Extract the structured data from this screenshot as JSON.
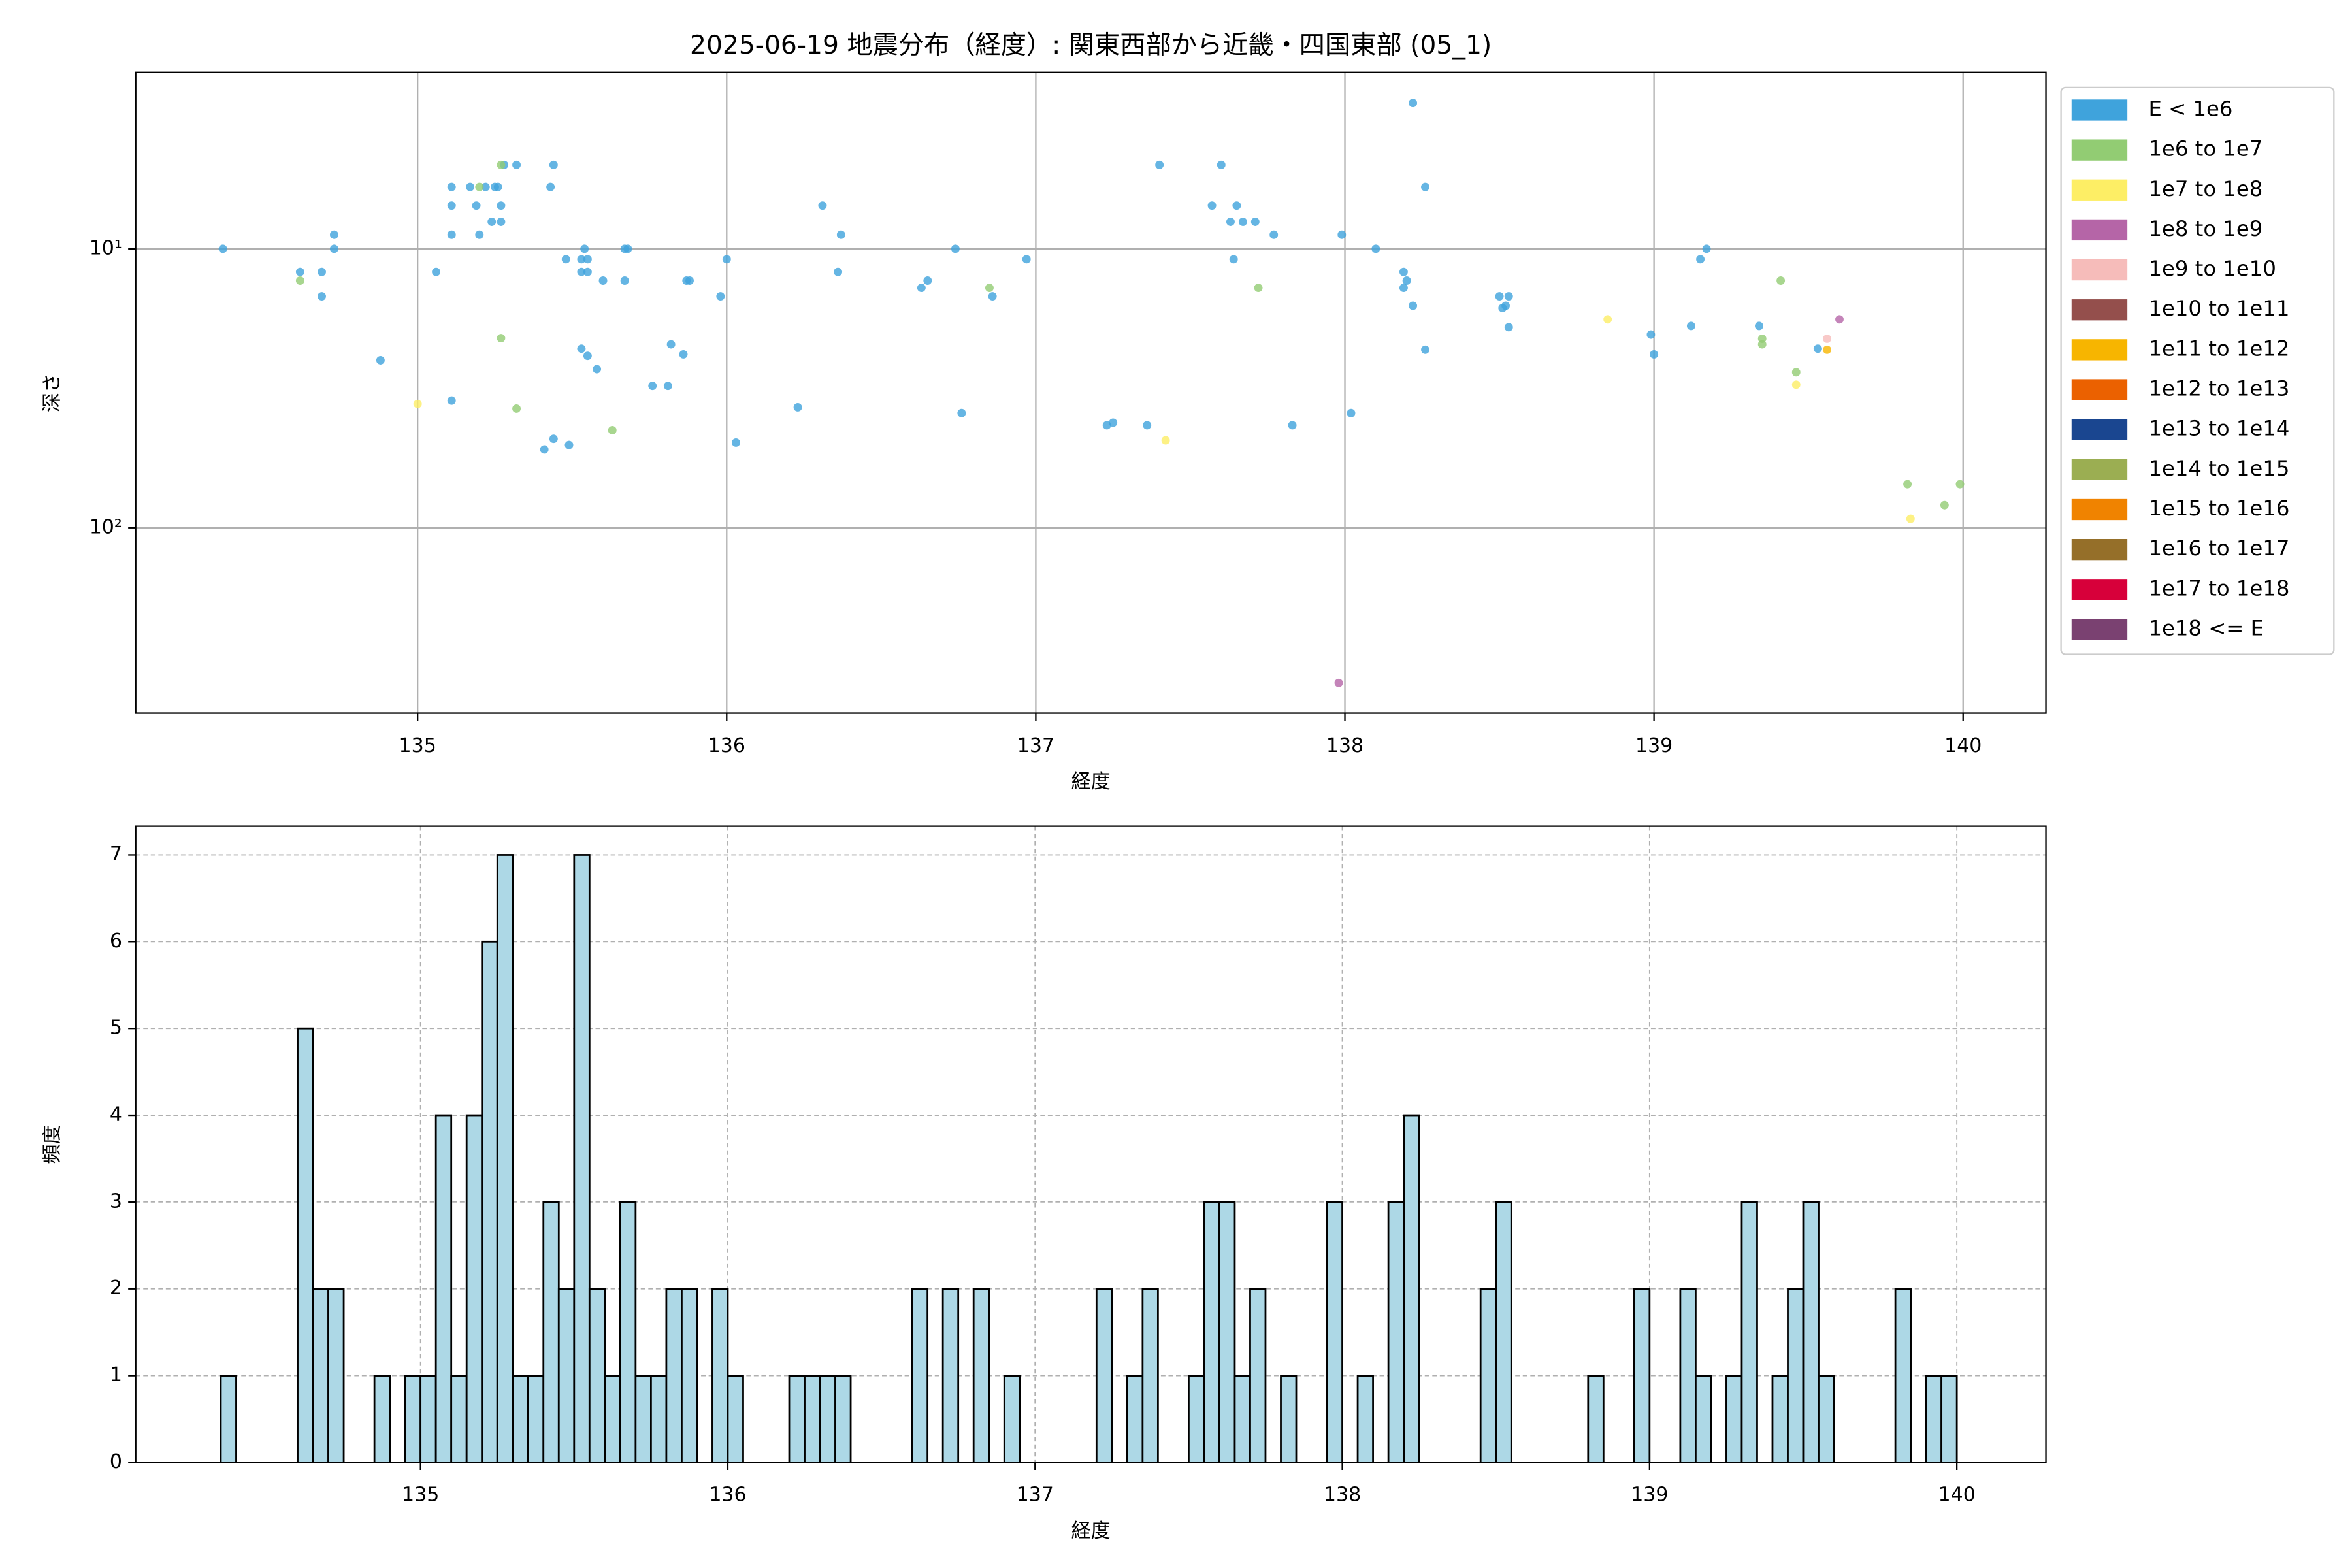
{
  "chart_data": [
    {
      "type": "scatter",
      "title": "2025-06-19 地震分布（経度）: 関東西部から近畿・四国東部 (05_1)",
      "xlabel": "経度",
      "ylabel": "深さ",
      "xlim": [
        134.088,
        140.268
      ],
      "xticks": [
        135,
        136,
        137,
        138,
        139,
        140
      ],
      "ylim": [
        2.33,
        462
      ],
      "yscale": "log",
      "y_inverted": true,
      "yticks": [
        {
          "value": 10,
          "label": "10¹"
        },
        {
          "value": 100,
          "label": "10²"
        }
      ],
      "grid": true,
      "legend": "outside upper right",
      "series": [
        {
          "name": "E < 1e6",
          "color": "#3fa3dc",
          "x": [
            134.37,
            134.62,
            134.69,
            134.69,
            134.73,
            134.73,
            134.88,
            135.11,
            135.11,
            135.11,
            135.06,
            135.11,
            135.17,
            135.19,
            135.2,
            135.22,
            135.25,
            135.26,
            135.24,
            135.27,
            135.27,
            135.28,
            135.32,
            135.44,
            135.43,
            135.48,
            135.54,
            135.53,
            135.55,
            135.53,
            135.55,
            135.6,
            135.67,
            135.68,
            135.67,
            135.53,
            135.55,
            135.58,
            135.82,
            135.86,
            135.76,
            135.81,
            135.87,
            135.88,
            135.44,
            135.41,
            135.49,
            135.98,
            136.0,
            136.03,
            136.23,
            136.31,
            136.37,
            136.36,
            136.63,
            136.65,
            136.74,
            136.86,
            136.97,
            136.76,
            137.23,
            137.25,
            137.36,
            137.4,
            137.57,
            137.6,
            137.63,
            137.65,
            137.67,
            137.71,
            137.64,
            137.77,
            137.83,
            137.99,
            138.02,
            138.1,
            138.22,
            138.26,
            138.19,
            138.2,
            138.19,
            138.22,
            138.26,
            138.5,
            138.52,
            138.51,
            138.53,
            138.53,
            138.99,
            139.0,
            139.12,
            139.15,
            139.17,
            139.34,
            139.53
          ],
          "values": [
            10,
            12.1,
            12.1,
            14.8,
            8.9,
            10,
            25.1,
            6,
            7,
            8.9,
            12.1,
            35,
            6,
            7,
            8.9,
            6,
            6,
            6,
            8,
            7,
            8,
            5,
            5,
            5,
            6,
            10.9,
            10,
            10.9,
            10.9,
            12.1,
            12.1,
            13,
            10,
            10,
            13,
            22.8,
            24.2,
            27,
            22,
            23.9,
            31,
            31,
            13,
            13,
            48,
            52.4,
            50.5,
            14.8,
            10.9,
            49.5,
            37,
            7,
            8.9,
            12.1,
            13.8,
            13,
            10,
            14.8,
            10.9,
            38.8,
            42.9,
            42,
            42.9,
            5,
            7,
            5,
            8,
            7,
            8,
            8,
            10.9,
            8.9,
            42.9,
            8.9,
            38.8,
            10,
            3,
            6,
            12.1,
            13,
            13.8,
            16,
            23,
            14.8,
            16,
            16.3,
            14.8,
            19.1,
            20.3,
            23.9,
            18.9,
            10.9,
            10,
            18.9,
            22.8
          ]
        },
        {
          "name": "1e6 to 1e7",
          "color": "#92cc73",
          "x": [
            134.62,
            135.27,
            135.2,
            135.27,
            135.32,
            135.63,
            136.85,
            137.72,
            139.35,
            139.35,
            139.46,
            139.41,
            139.82,
            139.94,
            139.99
          ],
          "values": [
            13,
            5,
            6,
            20.9,
            37.4,
            44.7,
            13.8,
            13.8,
            22,
            21,
            27.7,
            13,
            69.8,
            83,
            69.8
          ]
        },
        {
          "name": "1e7 to 1e8",
          "color": "#fdee65",
          "x": [
            135.0,
            137.42,
            138.85,
            139.46,
            139.83
          ],
          "values": [
            36,
            48.6,
            17.9,
            30.7,
            92.9
          ]
        },
        {
          "name": "1e8 to 1e9",
          "color": "#b565a7",
          "x": [
            137.98,
            139.6
          ],
          "values": [
            360,
            17.9
          ]
        },
        {
          "name": "1e9 to 1e10",
          "color": "#f6bcba",
          "x": [
            139.56
          ],
          "values": [
            21
          ]
        },
        {
          "name": "1e10 to 1e11",
          "color": "#944f4c",
          "x": [],
          "values": []
        },
        {
          "name": "1e11 to 1e12",
          "color": "#f7b500",
          "x": [
            139.56
          ],
          "values": [
            23
          ]
        },
        {
          "name": "1e12 to 1e13",
          "color": "#eb6100",
          "x": [],
          "values": []
        },
        {
          "name": "1e13 to 1e14",
          "color": "#1a4690",
          "x": [],
          "values": []
        },
        {
          "name": "1e14 to 1e15",
          "color": "#9bae52",
          "x": [],
          "values": []
        },
        {
          "name": "1e15 to 1e16",
          "color": "#f08300",
          "x": [],
          "values": []
        },
        {
          "name": "1e16 to 1e17",
          "color": "#956f29",
          "x": [],
          "values": []
        },
        {
          "name": "1e17 to 1e18",
          "color": "#d7003a",
          "x": [],
          "values": []
        },
        {
          "name": "1e18 <= E",
          "color": "#7a4171",
          "x": [],
          "values": []
        }
      ]
    },
    {
      "type": "histogram",
      "xlabel": "経度",
      "ylabel": "頻度",
      "color": "#add8e6",
      "edgecolor": "#000000",
      "xlim": [
        134.073,
        140.29
      ],
      "xticks": [
        135,
        136,
        137,
        138,
        139,
        140
      ],
      "ylim": [
        0,
        7.33
      ],
      "yticks": [
        0,
        1,
        2,
        3,
        4,
        5,
        6,
        7
      ],
      "grid": true,
      "bins": [
        134.35,
        134.4,
        134.45,
        134.5,
        134.55,
        134.6,
        134.65,
        134.7,
        134.75,
        134.8,
        134.85,
        134.9,
        134.95,
        135.0,
        135.05,
        135.1,
        135.15,
        135.2,
        135.25,
        135.3,
        135.35,
        135.4,
        135.45,
        135.5,
        135.55,
        135.6,
        135.65,
        135.7,
        135.75,
        135.8,
        135.85,
        135.9,
        135.95,
        136.0,
        136.05,
        136.1,
        136.15,
        136.2,
        136.25,
        136.3,
        136.35,
        136.4,
        136.45,
        136.5,
        136.55,
        136.6,
        136.65,
        136.7,
        136.75,
        136.8,
        136.85,
        136.9,
        136.95,
        137.0,
        137.05,
        137.1,
        137.15,
        137.2,
        137.25,
        137.3,
        137.35,
        137.4,
        137.45,
        137.5,
        137.55,
        137.6,
        137.65,
        137.7,
        137.75,
        137.8,
        137.85,
        137.9,
        137.95,
        138.0,
        138.05,
        138.1,
        138.15,
        138.2,
        138.25,
        138.3,
        138.35,
        138.4,
        138.45,
        138.5,
        138.55,
        138.6,
        138.65,
        138.7,
        138.75,
        138.8,
        138.85,
        138.9,
        138.95,
        139.0,
        139.05,
        139.1,
        139.15,
        139.2,
        139.25,
        139.3,
        139.35,
        139.4,
        139.45,
        139.5,
        139.55,
        139.6,
        139.65,
        139.7,
        139.75,
        139.8,
        139.85,
        139.9,
        139.95,
        140.0
      ],
      "values": [
        1,
        0,
        0,
        0,
        0,
        5,
        2,
        2,
        0,
        0,
        1,
        0,
        1,
        1,
        4,
        1,
        4,
        6,
        7,
        1,
        1,
        3,
        2,
        7,
        2,
        1,
        3,
        1,
        1,
        2,
        2,
        0,
        2,
        1,
        0,
        0,
        0,
        1,
        1,
        1,
        1,
        0,
        0,
        0,
        0,
        2,
        0,
        2,
        0,
        2,
        0,
        1,
        0,
        0,
        0,
        0,
        0,
        2,
        0,
        1,
        2,
        0,
        0,
        1,
        3,
        3,
        1,
        2,
        0,
        1,
        0,
        0,
        3,
        0,
        1,
        0,
        3,
        4,
        0,
        0,
        0,
        0,
        2,
        3,
        0,
        0,
        0,
        0,
        0,
        1,
        0,
        0,
        2,
        0,
        0,
        2,
        1,
        0,
        1,
        3,
        0,
        1,
        2,
        3,
        1,
        0,
        0,
        0,
        0,
        2,
        0,
        1,
        1
      ]
    }
  ]
}
